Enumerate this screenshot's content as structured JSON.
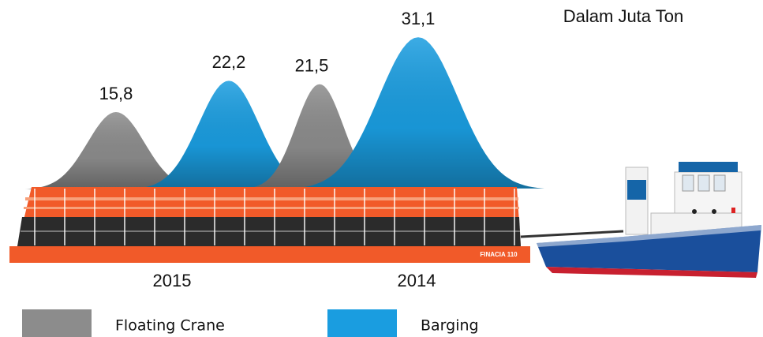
{
  "chart_data": {
    "type": "mountain",
    "subtitle": "Dalam Juta Ton",
    "categories": [
      "2015",
      "2014"
    ],
    "series": [
      {
        "name": "Floating Crane",
        "color": "#8c8c8c",
        "values": [
          15.8,
          21.5
        ],
        "value_labels": [
          "15,8",
          "21,5"
        ]
      },
      {
        "name": "Barging",
        "color": "#1a9de0",
        "values": [
          22.2,
          31.1
        ],
        "value_labels": [
          "22,2",
          "31,1"
        ]
      }
    ],
    "barge_label": "FINACIA 110"
  }
}
